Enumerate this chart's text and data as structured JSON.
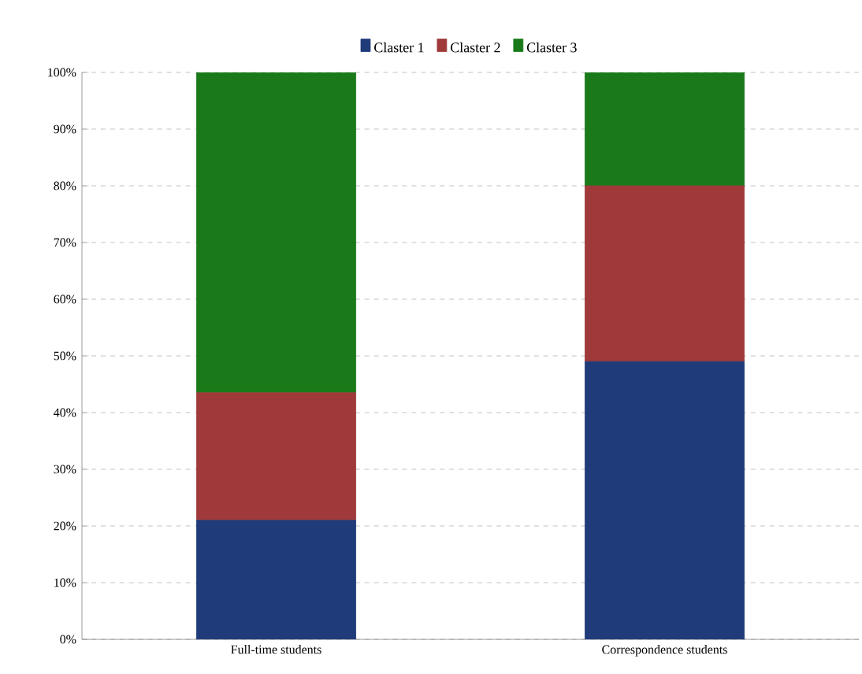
{
  "chart_data": {
    "type": "bar",
    "stacked": true,
    "categories": [
      "Full-time students",
      "Correspondence students"
    ],
    "series": [
      {
        "name": "Claster 1",
        "color": "#1f3b7a",
        "values": [
          21,
          49
        ]
      },
      {
        "name": "Claster 2",
        "color": "#a03a3a",
        "values": [
          22.5,
          31
        ]
      },
      {
        "name": "Claster 3",
        "color": "#1a7a1a",
        "values": [
          56.5,
          20
        ]
      }
    ],
    "ylim": [
      0,
      100
    ],
    "yticks": [
      {
        "value": 0,
        "label": "0%"
      },
      {
        "value": 10,
        "label": "10%"
      },
      {
        "value": 20,
        "label": "20%"
      },
      {
        "value": 30,
        "label": "30%"
      },
      {
        "value": 40,
        "label": "40%"
      },
      {
        "value": 50,
        "label": "50%"
      },
      {
        "value": 60,
        "label": "60%"
      },
      {
        "value": 70,
        "label": "70%"
      },
      {
        "value": 80,
        "label": "80%"
      },
      {
        "value": 90,
        "label": "90%"
      },
      {
        "value": 100,
        "label": "100%"
      }
    ],
    "grid": "y",
    "legend": "top"
  }
}
